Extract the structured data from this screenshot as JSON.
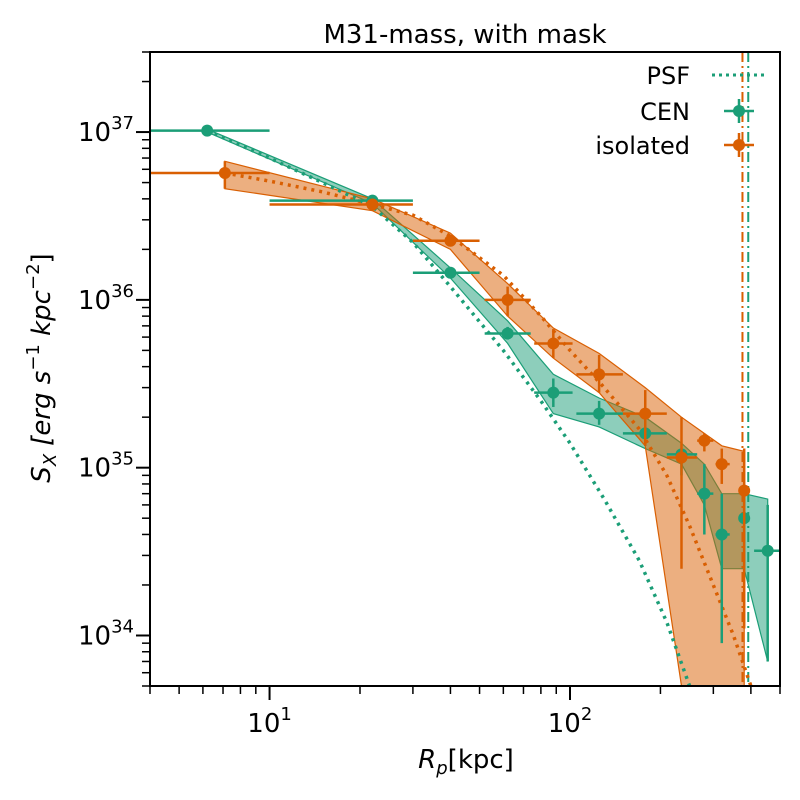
{
  "chart_data": {
    "type": "scatter",
    "title": "M31-mass, with mask",
    "xlabel": "[kpc]",
    "xlabel_symbol": "R",
    "xlabel_sub": "p",
    "ylabel_parts": {
      "s": "S",
      "sub": "X",
      "bracket_open": "[erg s",
      "exp1": "−1",
      "mid": " kpc",
      "exp2": "−2",
      "bracket_close": "]"
    },
    "xscale": "log",
    "yscale": "log",
    "xlim": [
      4,
      500
    ],
    "ylim": [
      5e+33,
      3e+37
    ],
    "x_ticks": [
      {
        "value": 10,
        "base": "10",
        "exp": "1"
      },
      {
        "value": 100,
        "base": "10",
        "exp": "2"
      }
    ],
    "y_ticks": [
      {
        "value": 1e+34,
        "base": "10",
        "exp": "34"
      },
      {
        "value": 1e+35,
        "base": "10",
        "exp": "35"
      },
      {
        "value": 1e+36,
        "base": "10",
        "exp": "36"
      },
      {
        "value": 1e+37,
        "base": "10",
        "exp": "37"
      }
    ],
    "legend_position": "top-right",
    "legend": [
      {
        "label": "PSF",
        "style": "dotted",
        "color": "#1b9e77"
      },
      {
        "label": "CEN",
        "style": "errorbar",
        "color": "#1b9e77"
      },
      {
        "label": "isolated",
        "style": "errorbar",
        "color": "#d95f02"
      }
    ],
    "series": [
      {
        "name": "CEN",
        "color": "#1b9e77",
        "points": [
          {
            "x": 6.2,
            "y": 1.02e+37,
            "xlo": 4,
            "xhi": 10,
            "ylo": 1e+37,
            "yhi": 1.04e+37
          },
          {
            "x": 22,
            "y": 3.9e+36,
            "xlo": 10,
            "xhi": 30,
            "ylo": 3.8e+36,
            "yhi": 4e+36
          },
          {
            "x": 40,
            "y": 1.45e+36,
            "xlo": 30,
            "xhi": 50,
            "ylo": 1.38e+36,
            "yhi": 1.52e+36
          },
          {
            "x": 62,
            "y": 6.3e+35,
            "xlo": 52,
            "xhi": 74,
            "ylo": 5.8e+35,
            "yhi": 6.9e+35
          },
          {
            "x": 88,
            "y": 2.8e+35,
            "xlo": 76,
            "xhi": 102,
            "ylo": 2.3e+35,
            "yhi": 3.4e+35
          },
          {
            "x": 125,
            "y": 2.1e+35,
            "xlo": 105,
            "xhi": 150,
            "ylo": 1.8e+35,
            "yhi": 2.5e+35
          },
          {
            "x": 178,
            "y": 1.6e+35,
            "xlo": 150,
            "xhi": 210,
            "ylo": 1.35e+35,
            "yhi": 1.9e+35
          },
          {
            "x": 235,
            "y": 1.2e+35,
            "xlo": 210,
            "xhi": 265,
            "ylo": 9e+34,
            "yhi": 1.3e+35
          },
          {
            "x": 280,
            "y": 7e+34,
            "xlo": 265,
            "xhi": 300,
            "ylo": 4e+34,
            "yhi": 1.05e+35
          },
          {
            "x": 320,
            "y": 4e+34,
            "xlo": 305,
            "xhi": 340,
            "ylo": 9e+33,
            "yhi": 7e+34
          },
          {
            "x": 380,
            "y": 5e+34,
            "xlo": 365,
            "xhi": 395,
            "ylo": 2.3e+34,
            "yhi": 8e+34
          },
          {
            "x": 455,
            "y": 3.2e+34,
            "xlo": 410,
            "xhi": 500,
            "ylo": 7e+33,
            "yhi": 6e+34
          }
        ],
        "band_lower": [
          1e+37,
          3.75e+36,
          1.35e+36,
          5.5e+35,
          2.1e+35,
          1.75e+35,
          1.3e+35,
          1.05e+35,
          6e+34,
          2.5e+34,
          2.5e+34,
          7e+33
        ],
        "band_upper": [
          1.04e+37,
          4e+36,
          1.55e+36,
          7.5e+35,
          3.6e+35,
          2.6e+35,
          2e+35,
          1.4e+35,
          1.05e+35,
          7e+34,
          7e+34,
          6.5e+34
        ],
        "psf_x": [
          6.2,
          10,
          15,
          22,
          30,
          40,
          60,
          80,
          100,
          130,
          170,
          210,
          250
        ],
        "psf_y": [
          1.02e+37,
          7e+36,
          5e+36,
          3.6e+36,
          2.2e+36,
          1.2e+36,
          5e+35,
          2.5e+35,
          1.4e+35,
          6.5e+34,
          2.8e+34,
          1.2e+34,
          5e+33
        ]
      },
      {
        "name": "isolated",
        "color": "#d95f02",
        "points": [
          {
            "x": 7.1,
            "y": 5.7e+36,
            "xlo": 4,
            "xhi": 10,
            "ylo": 4.6e+36,
            "yhi": 6.7e+36
          },
          {
            "x": 22,
            "y": 3.7e+36,
            "xlo": 10,
            "xhi": 30,
            "ylo": 3.4e+36,
            "yhi": 4e+36
          },
          {
            "x": 40,
            "y": 2.25e+36,
            "xlo": 30,
            "xhi": 50,
            "ylo": 2.1e+36,
            "yhi": 2.4e+36
          },
          {
            "x": 62,
            "y": 1e+36,
            "xlo": 52,
            "xhi": 74,
            "ylo": 8e+35,
            "yhi": 1.2e+36
          },
          {
            "x": 88,
            "y": 5.5e+35,
            "xlo": 76,
            "xhi": 102,
            "ylo": 4.5e+35,
            "yhi": 6.7e+35
          },
          {
            "x": 125,
            "y": 3.6e+35,
            "xlo": 105,
            "xhi": 150,
            "ylo": 2.8e+35,
            "yhi": 4.7e+35
          },
          {
            "x": 178,
            "y": 2.1e+35,
            "xlo": 150,
            "xhi": 210,
            "ylo": 1.35e+35,
            "yhi": 2.9e+35
          },
          {
            "x": 235,
            "y": 1.15e+35,
            "xlo": 210,
            "xhi": 265,
            "ylo": 2.5e+34,
            "yhi": 2e+35
          },
          {
            "x": 280,
            "y": 1.45e+35,
            "xlo": 265,
            "xhi": 300,
            "ylo": 1.25e+35,
            "yhi": 1.6e+35
          },
          {
            "x": 320,
            "y": 1.05e+35,
            "xlo": 305,
            "xhi": 340,
            "ylo": 8e+34,
            "yhi": 1.3e+35
          },
          {
            "x": 380,
            "y": 7.3e+34,
            "xlo": 365,
            "xhi": 395,
            "ylo": 1.1e+34,
            "yhi": 1.3e+35
          }
        ],
        "band_lower": [
          4.6e+36,
          3.4e+36,
          2e+36,
          8e+35,
          4.5e+35,
          2.8e+35,
          1.35e+35,
          5e+33,
          5e+33,
          5e+33,
          5e+33
        ],
        "band_upper": [
          6.7e+36,
          4e+36,
          2.5e+36,
          1.25e+36,
          6.8e+35,
          4.8e+35,
          3e+35,
          2e+35,
          1.6e+35,
          1.35e+35,
          1.25e+35
        ],
        "psf_x": [
          7.1,
          10,
          15,
          22,
          30,
          40,
          60,
          80,
          100,
          130,
          170,
          210,
          250,
          300,
          350,
          400
        ],
        "psf_y": [
          5.7e+36,
          5.1e+36,
          4.4e+36,
          3.7e+36,
          3.2e+36,
          2.4e+36,
          1.4e+36,
          8e+35,
          5e+35,
          3e+35,
          1.7e+35,
          9e+34,
          4.5e+34,
          2e+34,
          1e+34,
          5e+33
        ]
      }
    ],
    "vlines": [
      {
        "x": 375,
        "color": "#d95f02",
        "style": "dashdot"
      },
      {
        "x": 392,
        "color": "#1b9e77",
        "style": "dashdot"
      }
    ]
  }
}
